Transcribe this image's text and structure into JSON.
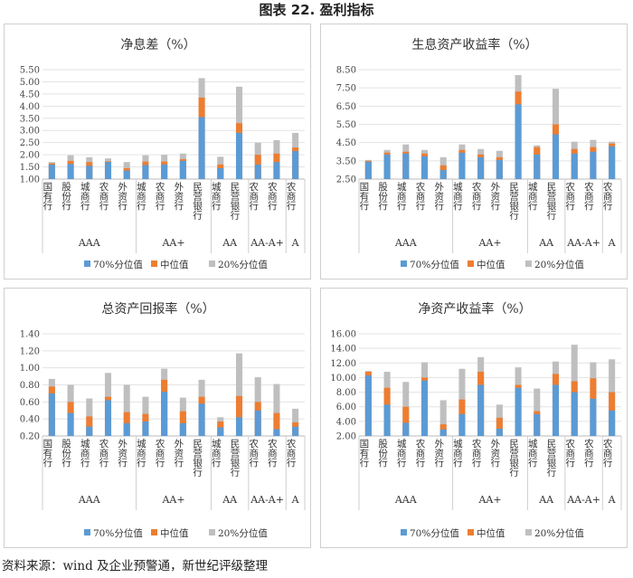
{
  "figure_title": "图表 22.  盈利指标",
  "source": "资料来源：wind 及企业预警通，新世纪评级整理",
  "colors": {
    "p70": "#5b9bd5",
    "median": "#ed7d31",
    "p20": "#bfbfbf"
  },
  "legend_labels": [
    "70%分位值",
    "中位值",
    "20%分位值"
  ],
  "categories": [
    "国有行",
    "股份行",
    "城商行",
    "农商行",
    "外资行",
    "城商行",
    "农商行",
    "外资行",
    "民营银行",
    "城商行",
    "民营银行",
    "农商行",
    "农商行",
    "农商行"
  ],
  "groups": [
    {
      "label": "AAA",
      "span": 5
    },
    {
      "label": "AA+",
      "span": 4
    },
    {
      "label": "AA",
      "span": 2
    },
    {
      "label": "AA-A+",
      "span": 2
    },
    {
      "label": "A",
      "span": 1
    }
  ],
  "chart_data": [
    {
      "type": "bar",
      "title": "净息差（%）",
      "ylim": [
        1.0,
        5.5
      ],
      "yticks": [
        "1.00",
        "1.50",
        "2.00",
        "2.50",
        "3.00",
        "3.50",
        "4.00",
        "4.50",
        "5.00",
        "5.50"
      ],
      "series": [
        {
          "name": "70%分位值",
          "values": [
            1.6,
            1.62,
            1.55,
            1.7,
            1.35,
            1.58,
            1.6,
            1.75,
            3.55,
            1.45,
            2.9,
            1.6,
            1.7,
            2.15
          ]
        },
        {
          "name": "中位值",
          "values": [
            1.65,
            1.75,
            1.7,
            1.73,
            1.45,
            1.72,
            1.72,
            1.82,
            4.35,
            1.6,
            3.3,
            2.0,
            2.05,
            2.3
          ]
        },
        {
          "name": "20%分位值",
          "values": [
            1.7,
            1.98,
            1.9,
            1.85,
            1.7,
            1.98,
            2.0,
            2.05,
            5.15,
            1.92,
            4.8,
            2.5,
            2.6,
            2.9
          ]
        }
      ]
    },
    {
      "type": "bar",
      "title": "生息资产收益率（%）",
      "ylim": [
        2.5,
        8.5
      ],
      "yticks": [
        "2.50",
        "3.50",
        "4.50",
        "5.50",
        "6.50",
        "7.50",
        "8.50"
      ],
      "series": [
        {
          "name": "70%分位值",
          "values": [
            3.45,
            3.85,
            3.9,
            3.75,
            3.0,
            3.95,
            3.7,
            3.55,
            6.6,
            3.85,
            4.95,
            3.9,
            4.0,
            4.3
          ]
        },
        {
          "name": "中位值",
          "values": [
            3.5,
            3.95,
            4.0,
            3.9,
            3.25,
            4.1,
            3.85,
            3.7,
            7.3,
            4.25,
            5.5,
            4.15,
            4.25,
            4.45
          ]
        },
        {
          "name": "20%分位值",
          "values": [
            3.55,
            4.1,
            4.4,
            4.1,
            3.7,
            4.4,
            4.15,
            4.05,
            8.2,
            4.35,
            7.45,
            4.55,
            4.65,
            4.55
          ]
        }
      ]
    },
    {
      "type": "bar",
      "title": "总资产回报率（%）",
      "ylim": [
        0.2,
        1.4
      ],
      "yticks": [
        "0.20",
        "0.40",
        "0.60",
        "0.80",
        "1.00",
        "1.20",
        "1.40"
      ],
      "series": [
        {
          "name": "70%分位值",
          "values": [
            0.7,
            0.47,
            0.31,
            0.62,
            0.35,
            0.37,
            0.72,
            0.35,
            0.58,
            0.3,
            0.42,
            0.5,
            0.28,
            0.31
          ]
        },
        {
          "name": "中位值",
          "values": [
            0.78,
            0.6,
            0.43,
            0.66,
            0.48,
            0.46,
            0.86,
            0.49,
            0.66,
            0.37,
            0.67,
            0.6,
            0.47,
            0.36
          ]
        },
        {
          "name": "20%分位值",
          "values": [
            0.87,
            0.8,
            0.64,
            0.94,
            0.8,
            0.66,
            0.99,
            0.65,
            0.86,
            0.42,
            1.17,
            0.89,
            0.81,
            0.52
          ]
        }
      ]
    },
    {
      "type": "bar",
      "title": "净资产收益率（%）",
      "ylim": [
        2.0,
        16.0
      ],
      "yticks": [
        "2.00",
        "4.00",
        "6.00",
        "8.00",
        "10.00",
        "12.00",
        "14.00",
        "16.00"
      ],
      "series": [
        {
          "name": "70%分位值",
          "values": [
            10.3,
            6.3,
            3.8,
            9.6,
            2.9,
            5.0,
            9.0,
            3.0,
            8.6,
            5.0,
            9.0,
            8.0,
            7.1,
            5.5
          ]
        },
        {
          "name": "中位值",
          "values": [
            10.8,
            8.6,
            6.0,
            10.0,
            3.6,
            7.0,
            10.8,
            4.5,
            9.0,
            5.4,
            10.5,
            9.5,
            9.9,
            8.0
          ]
        },
        {
          "name": "20%分位值",
          "values": [
            10.9,
            10.8,
            9.4,
            12.1,
            6.9,
            11.2,
            12.8,
            6.3,
            11.4,
            8.5,
            12.2,
            14.5,
            12.1,
            12.5
          ]
        }
      ]
    }
  ]
}
